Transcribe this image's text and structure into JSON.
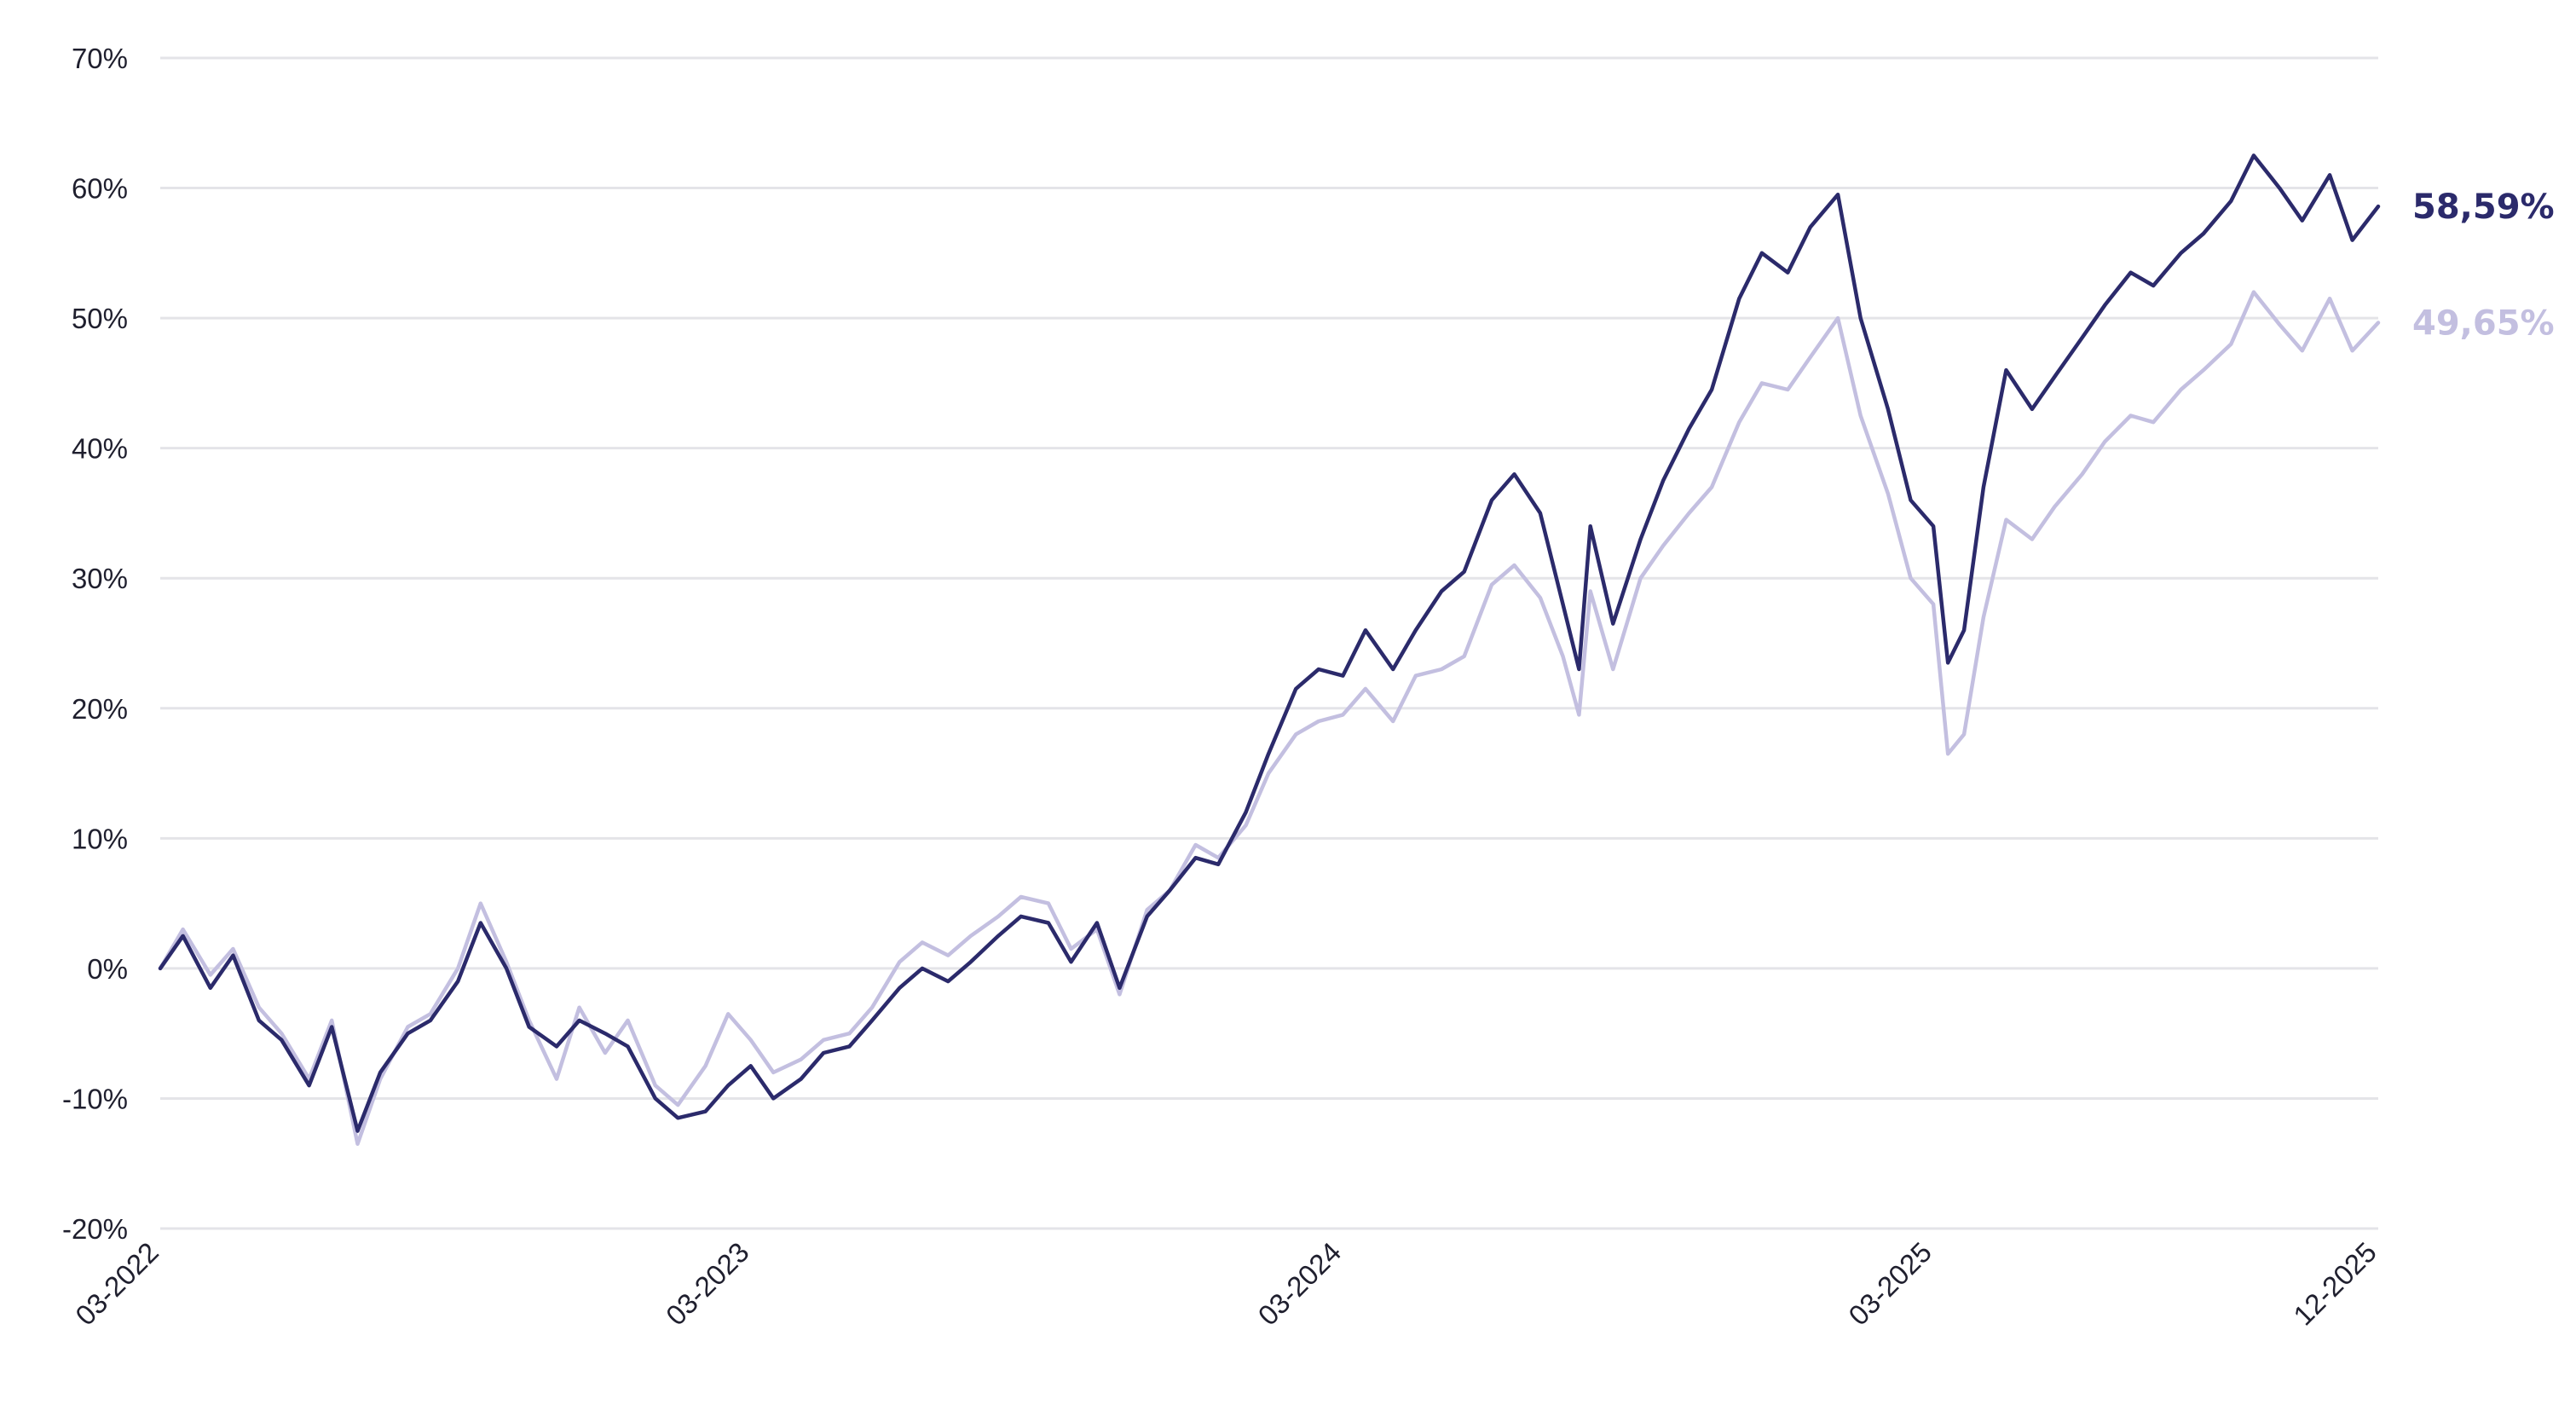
{
  "chart_data": {
    "type": "line",
    "title": "",
    "xlabel": "",
    "ylabel": "",
    "ylim": [
      -20,
      70
    ],
    "yticks": [
      70,
      60,
      50,
      40,
      30,
      20,
      10,
      0,
      -10,
      -20
    ],
    "ytick_labels": [
      "70%",
      "60%",
      "50%",
      "40%",
      "30%",
      "20%",
      "10%",
      "0%",
      "-10%",
      "-20%"
    ],
    "xticks": [
      "03-2022",
      "03-2023",
      "03-2024",
      "03-2025",
      "12-2025"
    ],
    "grid": true,
    "legend": "none",
    "colors": {
      "series_1": "#2b2a6b",
      "series_2": "#c3bfe0",
      "grid": "#e4e4e8",
      "text": "#1f1f2e"
    },
    "series": [
      {
        "end_label": "58,59%",
        "color": "#2b2a6b",
        "points": [
          [
            "2022-03",
            0
          ],
          [
            "2022-03-15",
            2.5
          ],
          [
            "2022-04",
            -1.5
          ],
          [
            "2022-04-15",
            1.0
          ],
          [
            "2022-05",
            -4.0
          ],
          [
            "2022-05-15",
            -5.5
          ],
          [
            "2022-06",
            -9.0
          ],
          [
            "2022-06-15",
            -4.5
          ],
          [
            "2022-07",
            -12.5
          ],
          [
            "2022-07-15",
            -8.0
          ],
          [
            "2022-08",
            -5.0
          ],
          [
            "2022-08-15",
            -4.0
          ],
          [
            "2022-09",
            -1.0
          ],
          [
            "2022-09-15",
            3.5
          ],
          [
            "2022-10",
            0.0
          ],
          [
            "2022-10-15",
            -4.5
          ],
          [
            "2022-11",
            -6.0
          ],
          [
            "2022-11-15",
            -4.0
          ],
          [
            "2022-12",
            -5.0
          ],
          [
            "2022-12-15",
            -6.0
          ],
          [
            "2023-01",
            -10.0
          ],
          [
            "2023-01-15",
            -11.5
          ],
          [
            "2023-02",
            -11.0
          ],
          [
            "2023-02-15",
            -9.0
          ],
          [
            "2023-03",
            -7.5
          ],
          [
            "2023-03-15",
            -10.0
          ],
          [
            "2023-04",
            -8.5
          ],
          [
            "2023-04-15",
            -6.5
          ],
          [
            "2023-05",
            -6.0
          ],
          [
            "2023-05-15",
            -4.0
          ],
          [
            "2023-06",
            -1.5
          ],
          [
            "2023-06-15",
            0.0
          ],
          [
            "2023-07",
            -1.0
          ],
          [
            "2023-07-15",
            0.5
          ],
          [
            "2023-08",
            2.5
          ],
          [
            "2023-08-15",
            4.0
          ],
          [
            "2023-09",
            3.5
          ],
          [
            "2023-09-15",
            0.5
          ],
          [
            "2023-10",
            3.5
          ],
          [
            "2023-10-15",
            -1.5
          ],
          [
            "2023-11",
            4.0
          ],
          [
            "2023-11-15",
            6.0
          ],
          [
            "2023-12",
            8.5
          ],
          [
            "2023-12-15",
            8.0
          ],
          [
            "2024-01",
            12.0
          ],
          [
            "2024-01-15",
            16.5
          ],
          [
            "2024-02",
            21.5
          ],
          [
            "2024-02-15",
            23.0
          ],
          [
            "2024-03",
            22.5
          ],
          [
            "2024-03-15",
            26.0
          ],
          [
            "2024-04",
            23.0
          ],
          [
            "2024-04-15",
            26.0
          ],
          [
            "2024-05",
            29.0
          ],
          [
            "2024-05-15",
            30.5
          ],
          [
            "2024-06",
            36.0
          ],
          [
            "2024-06-15",
            38.0
          ],
          [
            "2024-07",
            35.0
          ],
          [
            "2024-07-15",
            28.0
          ],
          [
            "2024-07-25",
            23.0
          ],
          [
            "2024-08",
            34.0
          ],
          [
            "2024-08-15",
            26.5
          ],
          [
            "2024-09",
            33.0
          ],
          [
            "2024-09-15",
            37.5
          ],
          [
            "2024-10",
            41.5
          ],
          [
            "2024-10-15",
            44.5
          ],
          [
            "2024-11",
            51.5
          ],
          [
            "2024-11-15",
            55.0
          ],
          [
            "2024-12",
            53.5
          ],
          [
            "2024-12-15",
            57.0
          ],
          [
            "2025-01",
            59.5
          ],
          [
            "2025-01-15",
            50.0
          ],
          [
            "2025-02",
            43.0
          ],
          [
            "2025-02-15",
            36.0
          ],
          [
            "2025-03",
            34.0
          ],
          [
            "2025-03-10",
            23.5
          ],
          [
            "2025-03-20",
            26.0
          ],
          [
            "2025-04",
            37.0
          ],
          [
            "2025-04-15",
            46.0
          ],
          [
            "2025-05",
            43.0
          ],
          [
            "2025-05-15",
            45.5
          ],
          [
            "2025-06",
            48.5
          ],
          [
            "2025-06-15",
            51.0
          ],
          [
            "2025-07",
            53.5
          ],
          [
            "2025-07-15",
            52.5
          ],
          [
            "2025-08",
            55.0
          ],
          [
            "2025-08-15",
            56.5
          ],
          [
            "2025-09",
            59.0
          ],
          [
            "2025-09-15",
            62.5
          ],
          [
            "2025-10",
            60.0
          ],
          [
            "2025-10-15",
            57.5
          ],
          [
            "2025-11",
            61.0
          ],
          [
            "2025-11-15",
            56.0
          ],
          [
            "2025-12",
            58.59
          ]
        ]
      },
      {
        "end_label": "49,65%",
        "color": "#c3bfe0",
        "points": [
          [
            "2022-03",
            0
          ],
          [
            "2022-03-15",
            3.0
          ],
          [
            "2022-04",
            -0.5
          ],
          [
            "2022-04-15",
            1.5
          ],
          [
            "2022-05",
            -3.0
          ],
          [
            "2022-05-15",
            -5.0
          ],
          [
            "2022-06",
            -8.5
          ],
          [
            "2022-06-15",
            -4.0
          ],
          [
            "2022-07",
            -13.5
          ],
          [
            "2022-07-15",
            -8.5
          ],
          [
            "2022-08",
            -4.5
          ],
          [
            "2022-08-15",
            -3.5
          ],
          [
            "2022-09",
            0.0
          ],
          [
            "2022-09-15",
            5.0
          ],
          [
            "2022-10",
            0.5
          ],
          [
            "2022-10-15",
            -4.0
          ],
          [
            "2022-11",
            -8.5
          ],
          [
            "2022-11-15",
            -3.0
          ],
          [
            "2022-12",
            -6.5
          ],
          [
            "2022-12-15",
            -4.0
          ],
          [
            "2023-01",
            -9.0
          ],
          [
            "2023-01-15",
            -10.5
          ],
          [
            "2023-02",
            -7.5
          ],
          [
            "2023-02-15",
            -3.5
          ],
          [
            "2023-03",
            -5.5
          ],
          [
            "2023-03-15",
            -8.0
          ],
          [
            "2023-04",
            -7.0
          ],
          [
            "2023-04-15",
            -5.5
          ],
          [
            "2023-05",
            -5.0
          ],
          [
            "2023-05-15",
            -3.0
          ],
          [
            "2023-06",
            0.5
          ],
          [
            "2023-06-15",
            2.0
          ],
          [
            "2023-07",
            1.0
          ],
          [
            "2023-07-15",
            2.5
          ],
          [
            "2023-08",
            4.0
          ],
          [
            "2023-08-15",
            5.5
          ],
          [
            "2023-09",
            5.0
          ],
          [
            "2023-09-15",
            1.5
          ],
          [
            "2023-10",
            3.0
          ],
          [
            "2023-10-15",
            -2.0
          ],
          [
            "2023-11",
            4.5
          ],
          [
            "2023-11-15",
            6.0
          ],
          [
            "2023-12",
            9.5
          ],
          [
            "2023-12-15",
            8.5
          ],
          [
            "2024-01",
            11.0
          ],
          [
            "2024-01-15",
            15.0
          ],
          [
            "2024-02",
            18.0
          ],
          [
            "2024-02-15",
            19.0
          ],
          [
            "2024-03",
            19.5
          ],
          [
            "2024-03-15",
            21.5
          ],
          [
            "2024-04",
            19.0
          ],
          [
            "2024-04-15",
            22.5
          ],
          [
            "2024-05",
            23.0
          ],
          [
            "2024-05-15",
            24.0
          ],
          [
            "2024-06",
            29.5
          ],
          [
            "2024-06-15",
            31.0
          ],
          [
            "2024-07",
            28.5
          ],
          [
            "2024-07-15",
            24.0
          ],
          [
            "2024-07-25",
            19.5
          ],
          [
            "2024-08",
            29.0
          ],
          [
            "2024-08-15",
            23.0
          ],
          [
            "2024-09",
            30.0
          ],
          [
            "2024-09-15",
            32.5
          ],
          [
            "2024-10",
            35.0
          ],
          [
            "2024-10-15",
            37.0
          ],
          [
            "2024-11",
            42.0
          ],
          [
            "2024-11-15",
            45.0
          ],
          [
            "2024-12",
            44.5
          ],
          [
            "2024-12-15",
            47.0
          ],
          [
            "2025-01",
            50.0
          ],
          [
            "2025-01-15",
            42.5
          ],
          [
            "2025-02",
            36.5
          ],
          [
            "2025-02-15",
            30.0
          ],
          [
            "2025-03",
            28.0
          ],
          [
            "2025-03-10",
            16.5
          ],
          [
            "2025-03-20",
            18.0
          ],
          [
            "2025-04",
            27.0
          ],
          [
            "2025-04-15",
            34.5
          ],
          [
            "2025-05",
            33.0
          ],
          [
            "2025-05-15",
            35.5
          ],
          [
            "2025-06",
            38.0
          ],
          [
            "2025-06-15",
            40.5
          ],
          [
            "2025-07",
            42.5
          ],
          [
            "2025-07-15",
            42.0
          ],
          [
            "2025-08",
            44.5
          ],
          [
            "2025-08-15",
            46.0
          ],
          [
            "2025-09",
            48.0
          ],
          [
            "2025-09-15",
            52.0
          ],
          [
            "2025-10",
            49.5
          ],
          [
            "2025-10-15",
            47.5
          ],
          [
            "2025-11",
            51.5
          ],
          [
            "2025-11-15",
            47.5
          ],
          [
            "2025-12",
            49.65
          ]
        ]
      }
    ]
  }
}
